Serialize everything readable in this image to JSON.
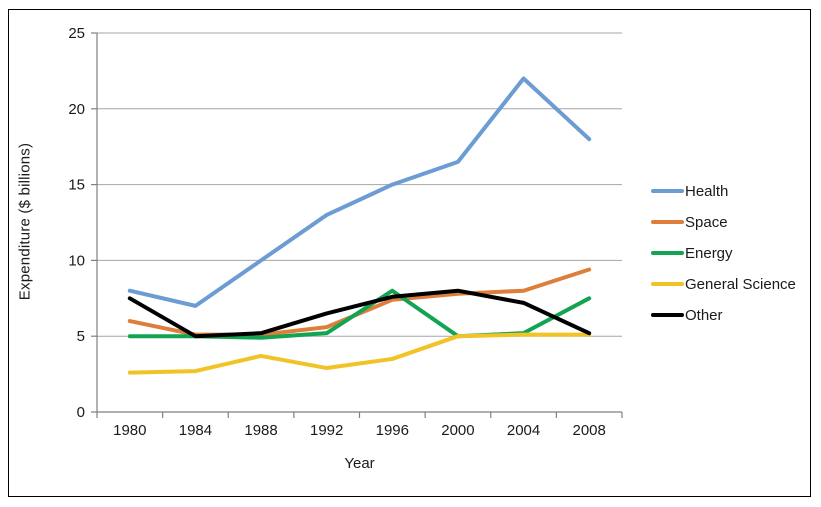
{
  "figure": {
    "background": "#ffffff",
    "border_color": "#000000"
  },
  "chart_data": {
    "type": "line",
    "title": "",
    "xlabel": "Year",
    "ylabel": "Expenditure ($ billions)",
    "x": [
      "1980",
      "1984",
      "1988",
      "1992",
      "1996",
      "2000",
      "2004",
      "2008"
    ],
    "ylim": [
      0,
      25
    ],
    "yticks": [
      0,
      5,
      10,
      15,
      20,
      25
    ],
    "grid": "horizontal",
    "gridline_color": "#a6a6a6",
    "axis_line_color": "#808080",
    "tick_text_color": "#1a1a1a",
    "legend_position": "right",
    "series": [
      {
        "name": "Health",
        "color": "#6b9cd3",
        "values": [
          8,
          7,
          10,
          13,
          15,
          16.5,
          22,
          18
        ]
      },
      {
        "name": "Space",
        "color": "#dd7e3b",
        "values": [
          6,
          5.1,
          5.1,
          5.6,
          7.4,
          7.8,
          8,
          9.4
        ]
      },
      {
        "name": "Energy",
        "color": "#12a452",
        "values": [
          5,
          5,
          4.9,
          5.2,
          8,
          5,
          5.2,
          7.5
        ]
      },
      {
        "name": "General Science",
        "color": "#f2c327",
        "values": [
          2.6,
          2.7,
          3.7,
          2.9,
          3.5,
          5,
          5.1,
          5.1
        ]
      },
      {
        "name": "Other",
        "color": "#000000",
        "values": [
          7.5,
          5,
          5.2,
          6.5,
          7.6,
          8,
          7.2,
          5.2
        ]
      }
    ]
  }
}
